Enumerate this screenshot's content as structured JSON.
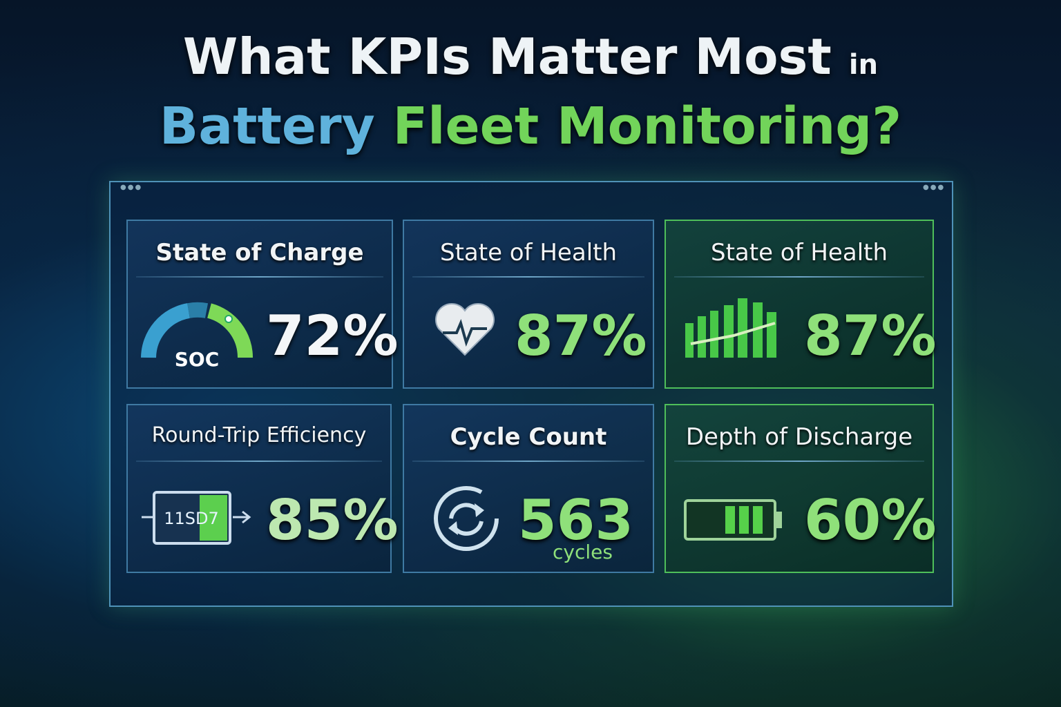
{
  "header": {
    "line1": "What KPIs Matter Most",
    "line1_small": "in",
    "line2_a": "Battery",
    "line2_b": "Fleet Monitoring?"
  },
  "cards": [
    {
      "title": "State of Charge",
      "value": "72%",
      "icon_label": "SOC"
    },
    {
      "title": "State of Health",
      "value": "87%"
    },
    {
      "title": "State of Health",
      "value": "87%"
    },
    {
      "title": "Round-Trip Efficiency",
      "value": "85%",
      "icon_label": "11SD7"
    },
    {
      "title": "Cycle Count",
      "value": "563",
      "unit": "cycles"
    },
    {
      "title": "Depth of Discharge",
      "value": "60%"
    }
  ]
}
